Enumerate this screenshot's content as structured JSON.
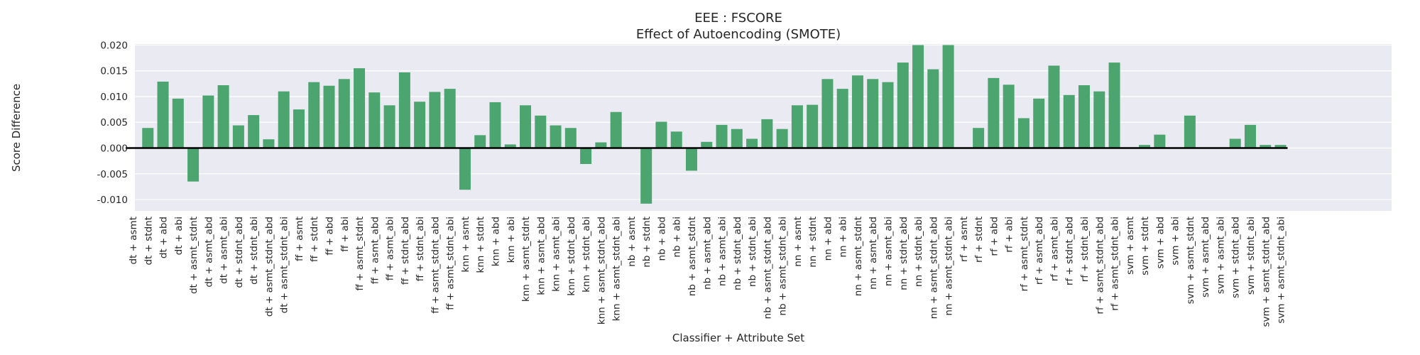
{
  "colors": {
    "background": "#ffffff",
    "plot_background": "#eaeaf2",
    "grid": "#ffffff",
    "bar": "#4ca56f",
    "zero_line": "#000000",
    "text": "#262626"
  },
  "chart_data": {
    "type": "bar",
    "title": "EEE : FSCORE",
    "subtitle": "Effect of Autoencoding (SMOTE)",
    "xlabel": "Classifier + Attribute Set",
    "ylabel": "Score Difference",
    "ylim": [
      -0.0122,
      0.0202
    ],
    "yticks": [
      -0.01,
      -0.005,
      0.0,
      0.005,
      0.01,
      0.015,
      0.02
    ],
    "ytick_labels": [
      "-0.010",
      "-0.005",
      "0.000",
      "0.005",
      "0.010",
      "0.015",
      "0.020"
    ],
    "grid": true,
    "categories": [
      "dt + asmt",
      "dt + stdnt",
      "dt + abd",
      "dt + abi",
      "dt + asmt_stdnt",
      "dt + asmt_abd",
      "dt + asmt_abi",
      "dt + stdnt_abd",
      "dt + stdnt_abi",
      "dt + asmt_stdnt_abd",
      "dt + asmt_stdnt_abi",
      "ff + asmt",
      "ff + stdnt",
      "ff + abd",
      "ff + abi",
      "ff + asmt_stdnt",
      "ff + asmt_abd",
      "ff + asmt_abi",
      "ff + stdnt_abd",
      "ff + stdnt_abi",
      "ff + asmt_stdnt_abd",
      "ff + asmt_stdnt_abi",
      "knn + asmt",
      "knn + stdnt",
      "knn + abd",
      "knn + abi",
      "knn + asmt_stdnt",
      "knn + asmt_abd",
      "knn + asmt_abi",
      "knn + stdnt_abd",
      "knn + stdnt_abi",
      "knn + asmt_stdnt_abd",
      "knn + asmt_stdnt_abi",
      "nb + asmt",
      "nb + stdnt",
      "nb + abd",
      "nb + abi",
      "nb + asmt_stdnt",
      "nb + asmt_abd",
      "nb + asmt_abi",
      "nb + stdnt_abd",
      "nb + stdnt_abi",
      "nb + asmt_stdnt_abd",
      "nb + asmt_stdnt_abi",
      "nn + asmt",
      "nn + stdnt",
      "nn + abd",
      "nn + abi",
      "nn + asmt_stdnt",
      "nn + asmt_abd",
      "nn + asmt_abi",
      "nn + stdnt_abd",
      "nn + stdnt_abi",
      "nn + asmt_stdnt_abd",
      "nn + asmt_stdnt_abi",
      "rf + asmt",
      "rf + stdnt",
      "rf + abd",
      "rf + abi",
      "rf + asmt_stdnt",
      "rf + asmt_abd",
      "rf + asmt_abi",
      "rf + stdnt_abd",
      "rf + stdnt_abi",
      "rf + asmt_stdnt_abd",
      "rf + asmt_stdnt_abi",
      "svm + asmt",
      "svm + stdnt",
      "svm + abd",
      "svm + abi",
      "svm + asmt_stdnt",
      "svm + asmt_abd",
      "svm + asmt_abi",
      "svm + stdnt_abd",
      "svm + stdnt_abi",
      "svm + asmt_stdnt_abd",
      "svm + asmt_stdnt_abi"
    ],
    "values": [
      0.0,
      0.0039,
      0.0129,
      0.0096,
      -0.0065,
      0.0102,
      0.0122,
      0.0044,
      0.0064,
      0.0017,
      0.011,
      0.0075,
      0.0128,
      0.0121,
      0.0134,
      0.0155,
      0.0108,
      0.0083,
      0.0147,
      0.009,
      0.0109,
      0.0115,
      -0.0081,
      0.0025,
      0.0089,
      0.0007,
      0.0083,
      0.0063,
      0.0044,
      0.0039,
      -0.0031,
      0.0011,
      0.007,
      0.0,
      -0.0108,
      0.0051,
      0.0032,
      -0.0044,
      0.0012,
      0.0045,
      0.0037,
      0.0018,
      0.0056,
      0.0037,
      0.0083,
      0.0084,
      0.0134,
      0.0115,
      0.0141,
      0.0134,
      0.0128,
      0.0166,
      0.02,
      0.0153,
      0.02,
      0.0,
      0.0039,
      0.0136,
      0.0123,
      0.0058,
      0.0096,
      0.016,
      0.0103,
      0.0122,
      0.011,
      0.0166,
      0.0,
      0.0006,
      0.0026,
      0.0,
      0.0063,
      0.0,
      0.0,
      0.0018,
      0.0045,
      0.0006,
      0.0006
    ]
  }
}
